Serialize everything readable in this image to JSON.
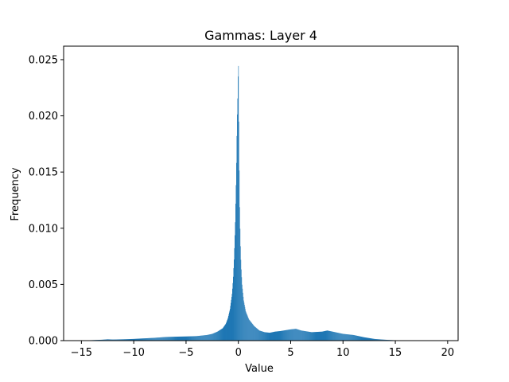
{
  "chart_data": {
    "type": "bar",
    "title": "Gammas: Layer 4",
    "xlabel": "Value",
    "ylabel": "Frequency",
    "xlim": [
      -16.7,
      21.0
    ],
    "ylim": [
      0,
      0.0262
    ],
    "x_ticks": [
      -15,
      -10,
      -5,
      0,
      5,
      10,
      15,
      20
    ],
    "y_ticks": [
      0.0,
      0.005,
      0.01,
      0.015,
      0.02,
      0.025
    ],
    "x_tick_labels": [
      "−15",
      "−10",
      "−5",
      "0",
      "5",
      "10",
      "15",
      "20"
    ],
    "y_tick_labels": [
      "0.000",
      "0.005",
      "0.010",
      "0.015",
      "0.020",
      "0.025"
    ],
    "grid": false,
    "bar_color": "#1f77b4",
    "bins": {
      "x": [
        -15,
        -14,
        -13,
        -12.5,
        -12,
        -11,
        -10,
        -9,
        -8,
        -7,
        -6,
        -5,
        -4,
        -3,
        -2.5,
        -2,
        -1.5,
        -1.2,
        -1,
        -0.8,
        -0.6,
        -0.5,
        -0.4,
        -0.3,
        -0.2,
        -0.15,
        -0.1,
        -0.05,
        0,
        0.02,
        0.05,
        0.08,
        0.12,
        0.18,
        0.25,
        0.35,
        0.5,
        0.7,
        1,
        1.5,
        2,
        2.5,
        3,
        3.5,
        4,
        5,
        5.5,
        6,
        7,
        8,
        8.5,
        9,
        10,
        11,
        12,
        13,
        14,
        15,
        16,
        17,
        18,
        19.5
      ],
      "y": [
        2e-05,
        4e-05,
        8e-05,
        0.00012,
        0.0001,
        0.00012,
        0.00015,
        0.0002,
        0.00025,
        0.00032,
        0.00035,
        0.00037,
        0.0004,
        0.0005,
        0.0006,
        0.0008,
        0.0011,
        0.0015,
        0.002,
        0.0028,
        0.0042,
        0.0055,
        0.0075,
        0.0105,
        0.0148,
        0.018,
        0.0205,
        0.0222,
        0.0256,
        0.0225,
        0.019,
        0.0155,
        0.012,
        0.009,
        0.0068,
        0.005,
        0.0036,
        0.0026,
        0.0019,
        0.0013,
        0.0009,
        0.00075,
        0.0007,
        0.0008,
        0.00085,
        0.001,
        0.00105,
        0.0009,
        0.00075,
        0.0008,
        0.0009,
        0.0008,
        0.0006,
        0.0005,
        0.0003,
        0.00015,
        8e-05,
        3e-05,
        1e-05,
        0.0,
        0.0,
        0.0
      ]
    }
  }
}
